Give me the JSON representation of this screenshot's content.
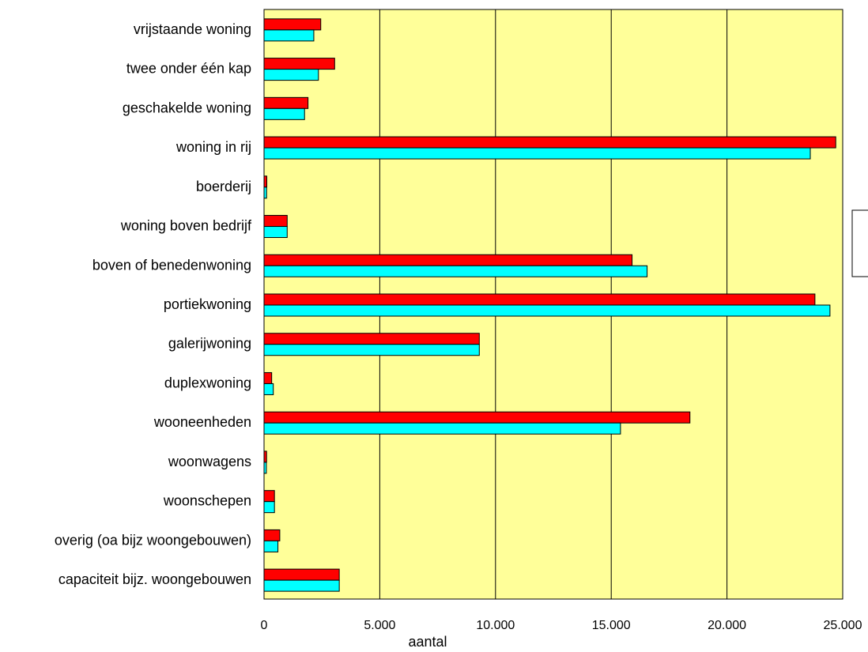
{
  "chart_data": {
    "type": "bar",
    "orientation": "horizontal",
    "categories": [
      "vrijstaande woning",
      "twee onder één kap",
      "geschakelde woning",
      "woning in rij",
      "boerderij",
      "woning boven bedrijf",
      "boven of benedenwoning",
      "portiekwoning",
      "galerijwoning",
      "duplexwoning",
      "wooneenheden",
      "woonwagens",
      "woonschepen",
      "overig (oa bijz woongebouwen)",
      "capaciteit bijz. woongebouwen"
    ],
    "series": [
      {
        "color": "#ff0000",
        "values": [
          2450,
          3050,
          1900,
          24700,
          120,
          1000,
          15900,
          23800,
          9300,
          330,
          18400,
          110,
          450,
          680,
          3250
        ]
      },
      {
        "color": "#00ffff",
        "values": [
          2150,
          2350,
          1750,
          23600,
          110,
          1000,
          16550,
          24450,
          9300,
          400,
          15400,
          100,
          450,
          600,
          3250
        ]
      }
    ],
    "xlabel": "aantal",
    "xlim": [
      0,
      25000
    ],
    "xticks": [
      0,
      5000,
      10000,
      15000,
      20000,
      25000
    ],
    "xtick_labels": [
      "0",
      "5.000",
      "10.000",
      "15.000",
      "20.000",
      "25.000"
    ],
    "grid": "vertical",
    "plot_background": "#ffff99",
    "legend": "right (empty box)"
  }
}
